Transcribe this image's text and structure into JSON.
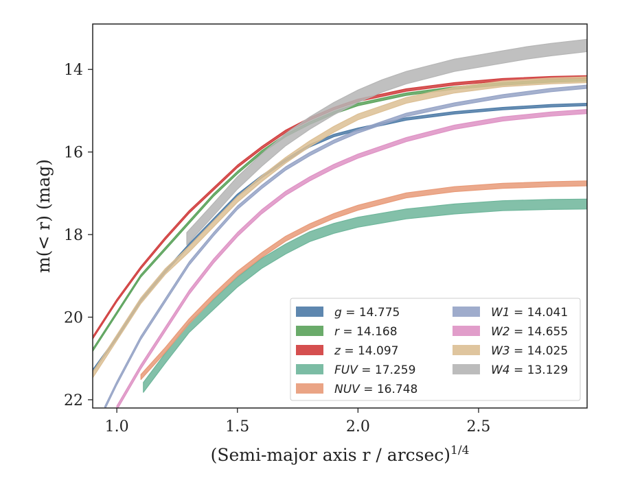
{
  "chart_data": {
    "type": "line",
    "xlabel": "(Semi-major axis r / arcsec)",
    "xlabel_superscript": "1/4",
    "ylabel": "m(< r) (mag)",
    "xlim": [
      0.9,
      2.95
    ],
    "ylim": [
      22.2,
      12.9
    ],
    "y_inverted": true,
    "grid": false,
    "legend_position": "lower-right",
    "xticks": [
      1.0,
      1.5,
      2.0,
      2.5
    ],
    "xtick_labels": [
      "1.0",
      "1.5",
      "2.0",
      "2.5"
    ],
    "yticks": [
      14,
      16,
      18,
      20,
      22
    ],
    "ytick_labels": [
      "14",
      "16",
      "18",
      "20",
      "22"
    ],
    "legend_columns": 2,
    "series": [
      {
        "name": "g = 14.775",
        "label_var": "g",
        "label_value": "= 14.775",
        "color": "#4c7aa6",
        "band_halfwidth": 0.03,
        "x": [
          0.9,
          1.0,
          1.1,
          1.2,
          1.3,
          1.4,
          1.5,
          1.6,
          1.7,
          1.8,
          1.9,
          2.0,
          2.2,
          2.4,
          2.6,
          2.8,
          2.95
        ],
        "y": [
          21.3,
          20.5,
          19.6,
          18.9,
          18.25,
          17.65,
          17.05,
          16.6,
          16.2,
          15.85,
          15.6,
          15.45,
          15.2,
          15.05,
          14.95,
          14.88,
          14.85
        ]
      },
      {
        "name": "r = 14.168",
        "label_var": "r",
        "label_value": "= 14.168",
        "color": "#5aa25a",
        "band_halfwidth": 0.03,
        "x": [
          0.9,
          1.0,
          1.1,
          1.2,
          1.3,
          1.4,
          1.5,
          1.6,
          1.7,
          1.8,
          1.9,
          2.0,
          2.2,
          2.4,
          2.6,
          2.8,
          2.95
        ],
        "y": [
          20.8,
          19.9,
          19.0,
          18.35,
          17.7,
          17.05,
          16.5,
          16.0,
          15.6,
          15.3,
          15.05,
          14.85,
          14.6,
          14.45,
          14.35,
          14.28,
          14.25
        ]
      },
      {
        "name": "z = 14.097",
        "label_var": "z",
        "label_value": "= 14.097",
        "color": "#d03c3c",
        "band_halfwidth": 0.03,
        "x": [
          0.9,
          1.0,
          1.1,
          1.2,
          1.3,
          1.4,
          1.5,
          1.6,
          1.7,
          1.8,
          1.9,
          2.0,
          2.2,
          2.4,
          2.6,
          2.8,
          2.95
        ],
        "y": [
          20.5,
          19.6,
          18.8,
          18.1,
          17.45,
          16.9,
          16.35,
          15.9,
          15.5,
          15.2,
          14.95,
          14.75,
          14.5,
          14.35,
          14.25,
          14.2,
          14.18
        ]
      },
      {
        "name": "FUV = 17.259",
        "label_var": "FUV",
        "label_value": "= 17.259",
        "color": "#6db59a",
        "band_halfwidth": 0.12,
        "x": [
          1.11,
          1.2,
          1.3,
          1.4,
          1.5,
          1.6,
          1.7,
          1.8,
          1.9,
          2.0,
          2.2,
          2.4,
          2.6,
          2.8,
          2.95
        ],
        "y": [
          21.7,
          21.0,
          20.25,
          19.7,
          19.15,
          18.7,
          18.35,
          18.05,
          17.85,
          17.7,
          17.5,
          17.38,
          17.3,
          17.27,
          17.26
        ]
      },
      {
        "name": "NUV = 16.748",
        "label_var": "NUV",
        "label_value": "= 16.748",
        "color": "#e89a78",
        "band_halfwidth": 0.06,
        "x": [
          1.1,
          1.2,
          1.3,
          1.4,
          1.5,
          1.6,
          1.7,
          1.8,
          1.9,
          2.0,
          2.2,
          2.4,
          2.6,
          2.8,
          2.95
        ],
        "y": [
          21.45,
          20.8,
          20.1,
          19.5,
          18.95,
          18.5,
          18.1,
          17.8,
          17.55,
          17.35,
          17.05,
          16.9,
          16.82,
          16.78,
          16.76
        ]
      },
      {
        "name": "W1 = 14.041",
        "label_var": "W1",
        "label_value": "= 14.041",
        "color": "#95a3c6",
        "band_halfwidth": 0.04,
        "x": [
          0.95,
          1.0,
          1.1,
          1.2,
          1.3,
          1.4,
          1.5,
          1.6,
          1.7,
          1.8,
          1.9,
          2.0,
          2.2,
          2.4,
          2.6,
          2.8,
          2.95
        ],
        "y": [
          22.2,
          21.6,
          20.5,
          19.6,
          18.7,
          18.0,
          17.35,
          16.85,
          16.4,
          16.05,
          15.75,
          15.5,
          15.1,
          14.85,
          14.65,
          14.5,
          14.42
        ]
      },
      {
        "name": "W2 = 14.655",
        "label_var": "W2",
        "label_value": "= 14.655",
        "color": "#de92c4",
        "band_halfwidth": 0.05,
        "x": [
          1.0,
          1.1,
          1.2,
          1.3,
          1.4,
          1.5,
          1.6,
          1.7,
          1.8,
          1.9,
          2.0,
          2.2,
          2.4,
          2.6,
          2.8,
          2.95
        ],
        "y": [
          22.2,
          21.2,
          20.3,
          19.4,
          18.65,
          18.0,
          17.45,
          17.0,
          16.65,
          16.35,
          16.1,
          15.7,
          15.4,
          15.2,
          15.08,
          15.02
        ]
      },
      {
        "name": "W3 = 14.025",
        "label_var": "W3",
        "label_value": "= 14.025",
        "color": "#dcbf94",
        "band_halfwidth": 0.07,
        "x": [
          0.9,
          1.0,
          1.1,
          1.2,
          1.3,
          1.4,
          1.5,
          1.6,
          1.7,
          1.8,
          1.9,
          2.0,
          2.2,
          2.4,
          2.6,
          2.8,
          2.95
        ],
        "y": [
          21.4,
          20.5,
          19.6,
          18.9,
          18.35,
          17.75,
          17.15,
          16.65,
          16.2,
          15.8,
          15.45,
          15.15,
          14.75,
          14.5,
          14.35,
          14.28,
          14.25
        ]
      },
      {
        "name": "W4 = 13.129",
        "label_var": "W4",
        "label_value": "= 13.129",
        "color": "#b5b5b5",
        "band_halfwidth": 0.15,
        "x": [
          1.29,
          1.4,
          1.5,
          1.6,
          1.7,
          1.8,
          1.9,
          2.0,
          2.1,
          2.2,
          2.3,
          2.4,
          2.5,
          2.6,
          2.7,
          2.8,
          2.95
        ],
        "y": [
          18.1,
          17.4,
          16.75,
          16.2,
          15.7,
          15.3,
          14.95,
          14.65,
          14.4,
          14.2,
          14.05,
          13.9,
          13.8,
          13.7,
          13.6,
          13.52,
          13.42
        ]
      }
    ]
  }
}
